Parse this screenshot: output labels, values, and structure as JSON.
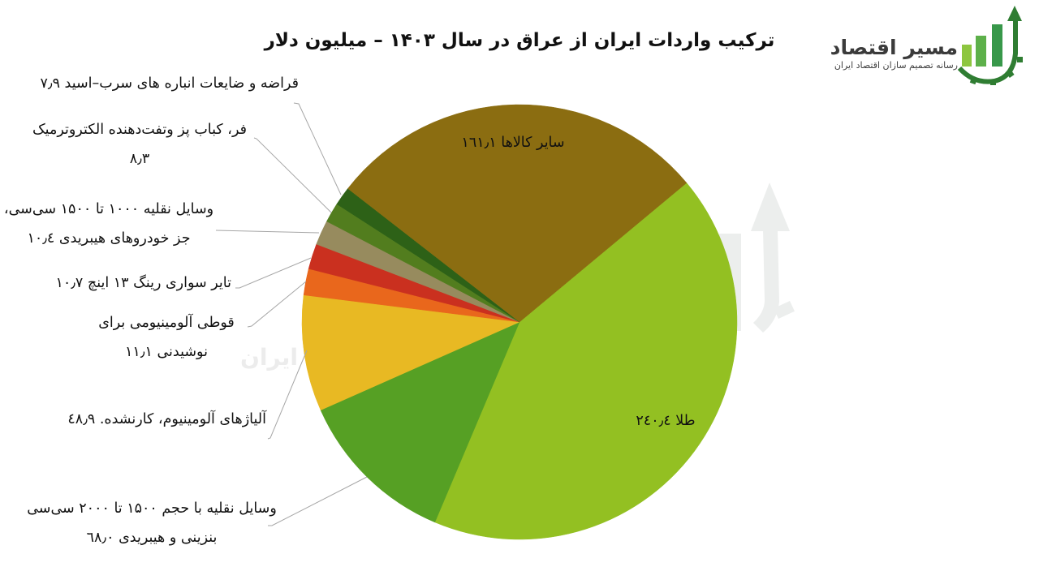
{
  "title": "ترکیب واردات ایران از عراق در سال ۱۴۰۳ – میلیون دلار",
  "logo": {
    "name": "مسیر اقتصاد",
    "tagline": "رسانه تصمیم سازان اقتصاد ایران"
  },
  "watermark": {
    "text": "ایران"
  },
  "labels": {
    "scrap": [
      "قراضه و ضایعات انباره های سرب–اسید ۷٫۹"
    ],
    "oven": [
      "فر، کباب پز وتفت‌دهنده الکتروترمیک",
      "۸٫۳"
    ],
    "vehicles_1000": [
      "وسایل نقلیه ۱۰۰۰ تا ۱۵۰۰ سی‌سی،",
      "جز خودروهای هیبریدی ۱۰٫٤"
    ],
    "tires": [
      "تایر سواری رینگ ۱۳ اینچ ۱۰٫۷"
    ],
    "cans": [
      "قوطی آلومینیومی برای",
      "نوشیدنی ۱۱٫۱"
    ],
    "alloys": [
      "آلیاژهای آلومینیوم، کارنشده. ٤۸٫۹"
    ],
    "vehicles_1500": [
      "وسایل نقلیه با حجم ۱۵۰۰ تا ۲۰۰۰ سی‌سی",
      "بنزینی و هیبریدی ٦۸٫۰"
    ],
    "other": "سایر کالاها ١٦١٫١",
    "gold": "طلا ٢٤٠٫٤"
  },
  "chart_data": {
    "type": "pie",
    "title": "ترکیب واردات ایران از عراق در سال ۱۴۰۳ – میلیون دلار",
    "unit": "میلیون دلار",
    "categories": [
      "طلا",
      "وسایل نقلیه با حجم ۱۵۰۰ تا ۲۰۰۰ سی‌سی بنزینی و هیبریدی",
      "آلیاژهای آلومینیوم، کارنشده.",
      "قوطی آلومینیومی برای نوشیدنی",
      "تایر سواری رینگ ۱۳ اینچ",
      "وسایل نقلیه ۱۰۰۰ تا ۱۵۰۰ سی‌سی، جز خودروهای هیبریدی",
      "فر، کباب پز وتفت‌دهنده الکتروترمیک",
      "قراضه و ضایعات انباره های سرب–اسید",
      "سایر کالاها"
    ],
    "values": [
      240.4,
      68.0,
      48.9,
      11.1,
      10.7,
      10.4,
      8.3,
      7.9,
      161.1
    ],
    "colors": [
      "#93C022",
      "#56A024",
      "#E8B923",
      "#E9671C",
      "#CA301F",
      "#978B5E",
      "#527D1E",
      "#2D6117",
      "#8B6D11"
    ],
    "data_labels": "outside with leader lines (small slices), inside (gold, other)",
    "legend": "none"
  }
}
